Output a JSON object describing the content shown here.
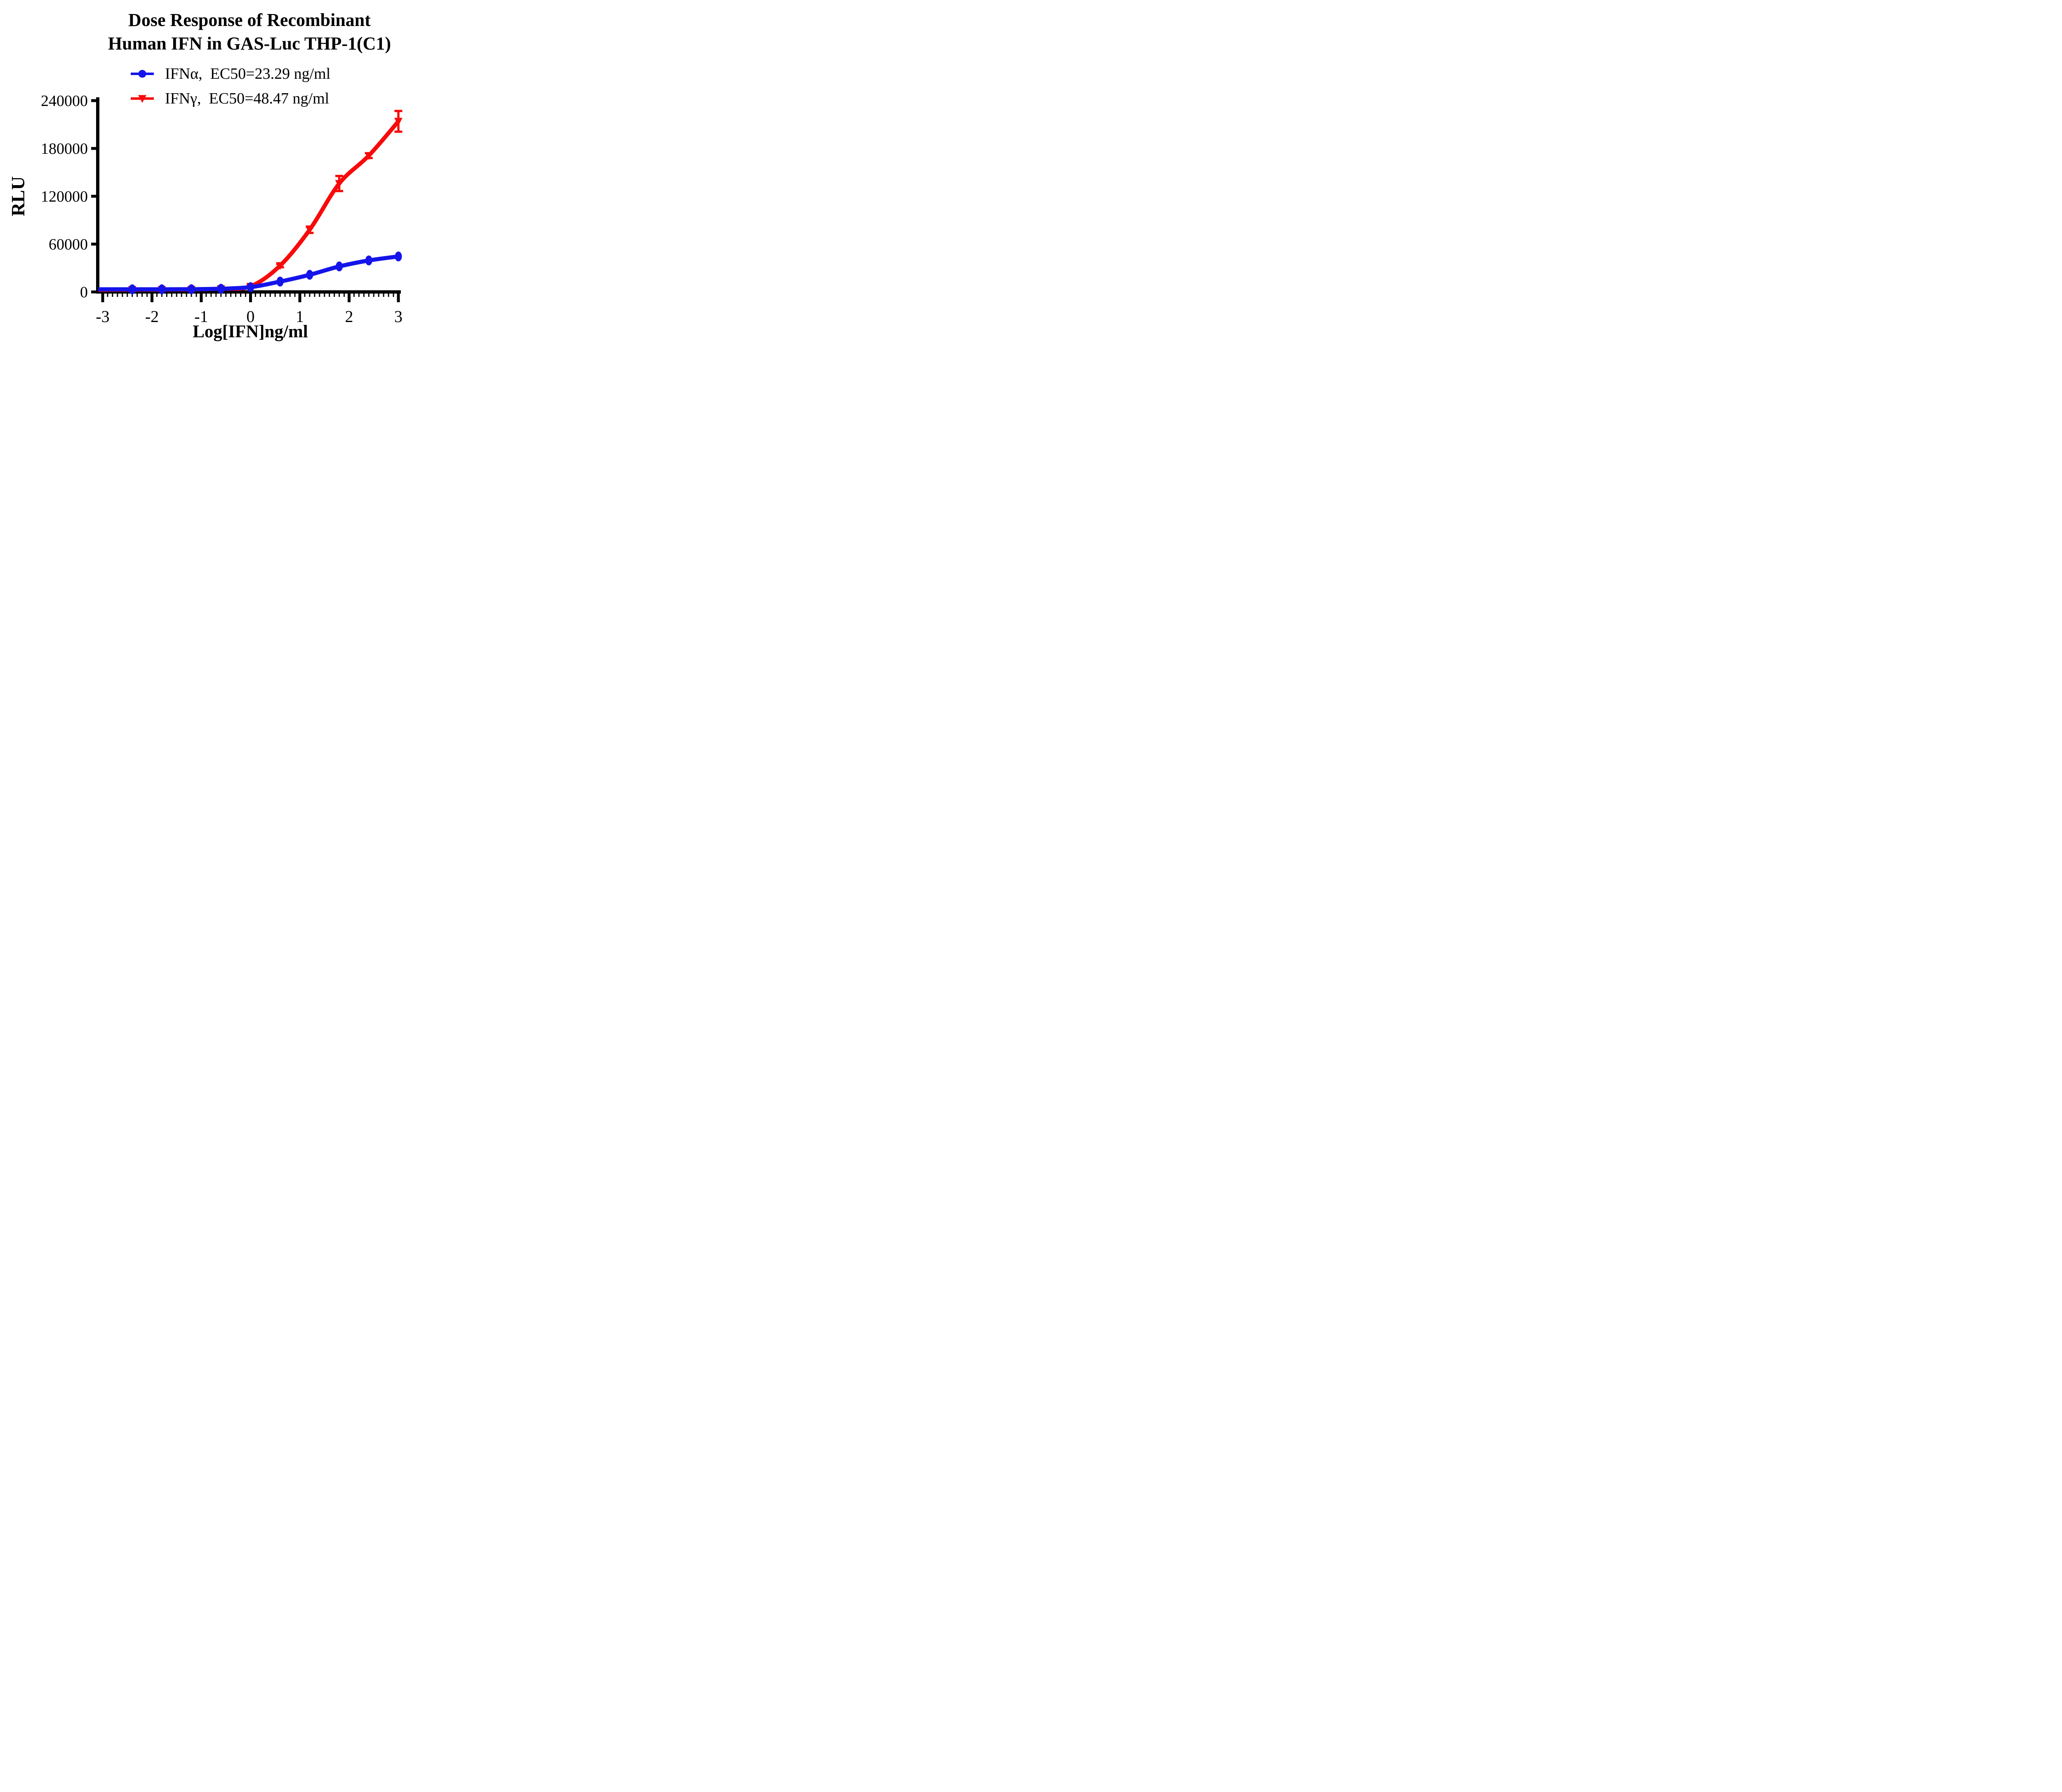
{
  "title": {
    "line1": "Dose Response of Recombinant",
    "line2": "Human IFN in GAS-Luc THP-1(C1)"
  },
  "legend": {
    "items": [
      {
        "label": "IFNα,  EC50=23.29 ng/ml",
        "marker": "circle"
      },
      {
        "label": "IFNγ,  EC50=48.47 ng/ml",
        "marker": "triangle-down"
      }
    ]
  },
  "chart_data": {
    "type": "line",
    "title": "Dose Response of Recombinant Human IFN in GAS-Luc THP-1(C1)",
    "xlabel": "Log[IFN]ng/ml",
    "ylabel": "RLU",
    "xlim": [
      -3,
      3
    ],
    "ylim": [
      0,
      240000
    ],
    "x_ticks": [
      -3,
      -2,
      -1,
      0,
      1,
      2,
      3
    ],
    "y_ticks": [
      0,
      60000,
      120000,
      180000,
      240000
    ],
    "x_minor_tick_step": 0.1,
    "grid": false,
    "legend_position": "top",
    "x": [
      -2.4,
      -1.8,
      -1.2,
      -0.6,
      0,
      0.6,
      1.2,
      1.8,
      2.4,
      3
    ],
    "series": [
      {
        "key": "ifn-alpha",
        "name": "IFNα",
        "ec50_label": "EC50=23.29 ng/ml",
        "ec50_ng_ml": 23.29,
        "marker": "circle",
        "color": "#1414eb",
        "values": [
          3300,
          3300,
          3400,
          4000,
          6000,
          13000,
          21500,
          32000,
          39500,
          44500
        ],
        "baseline_extension_value": 3300
      },
      {
        "key": "ifn-gamma",
        "name": "IFNγ",
        "ec50_label": "EC50=48.47 ng/ml",
        "ec50_ng_ml": 48.47,
        "marker": "triangle-down",
        "color": "#f80a0a",
        "values": [
          3000,
          3000,
          3200,
          4000,
          7000,
          33000,
          78000,
          136000,
          171000,
          214000
        ],
        "errors": [
          1500,
          1500,
          1500,
          1500,
          1500,
          2000,
          4000,
          9500,
          3000,
          13000
        ],
        "baseline_extension_value": 2600
      }
    ],
    "colors": {
      "axis": "#000000",
      "text": "#000000",
      "background": "#ffffff"
    }
  }
}
